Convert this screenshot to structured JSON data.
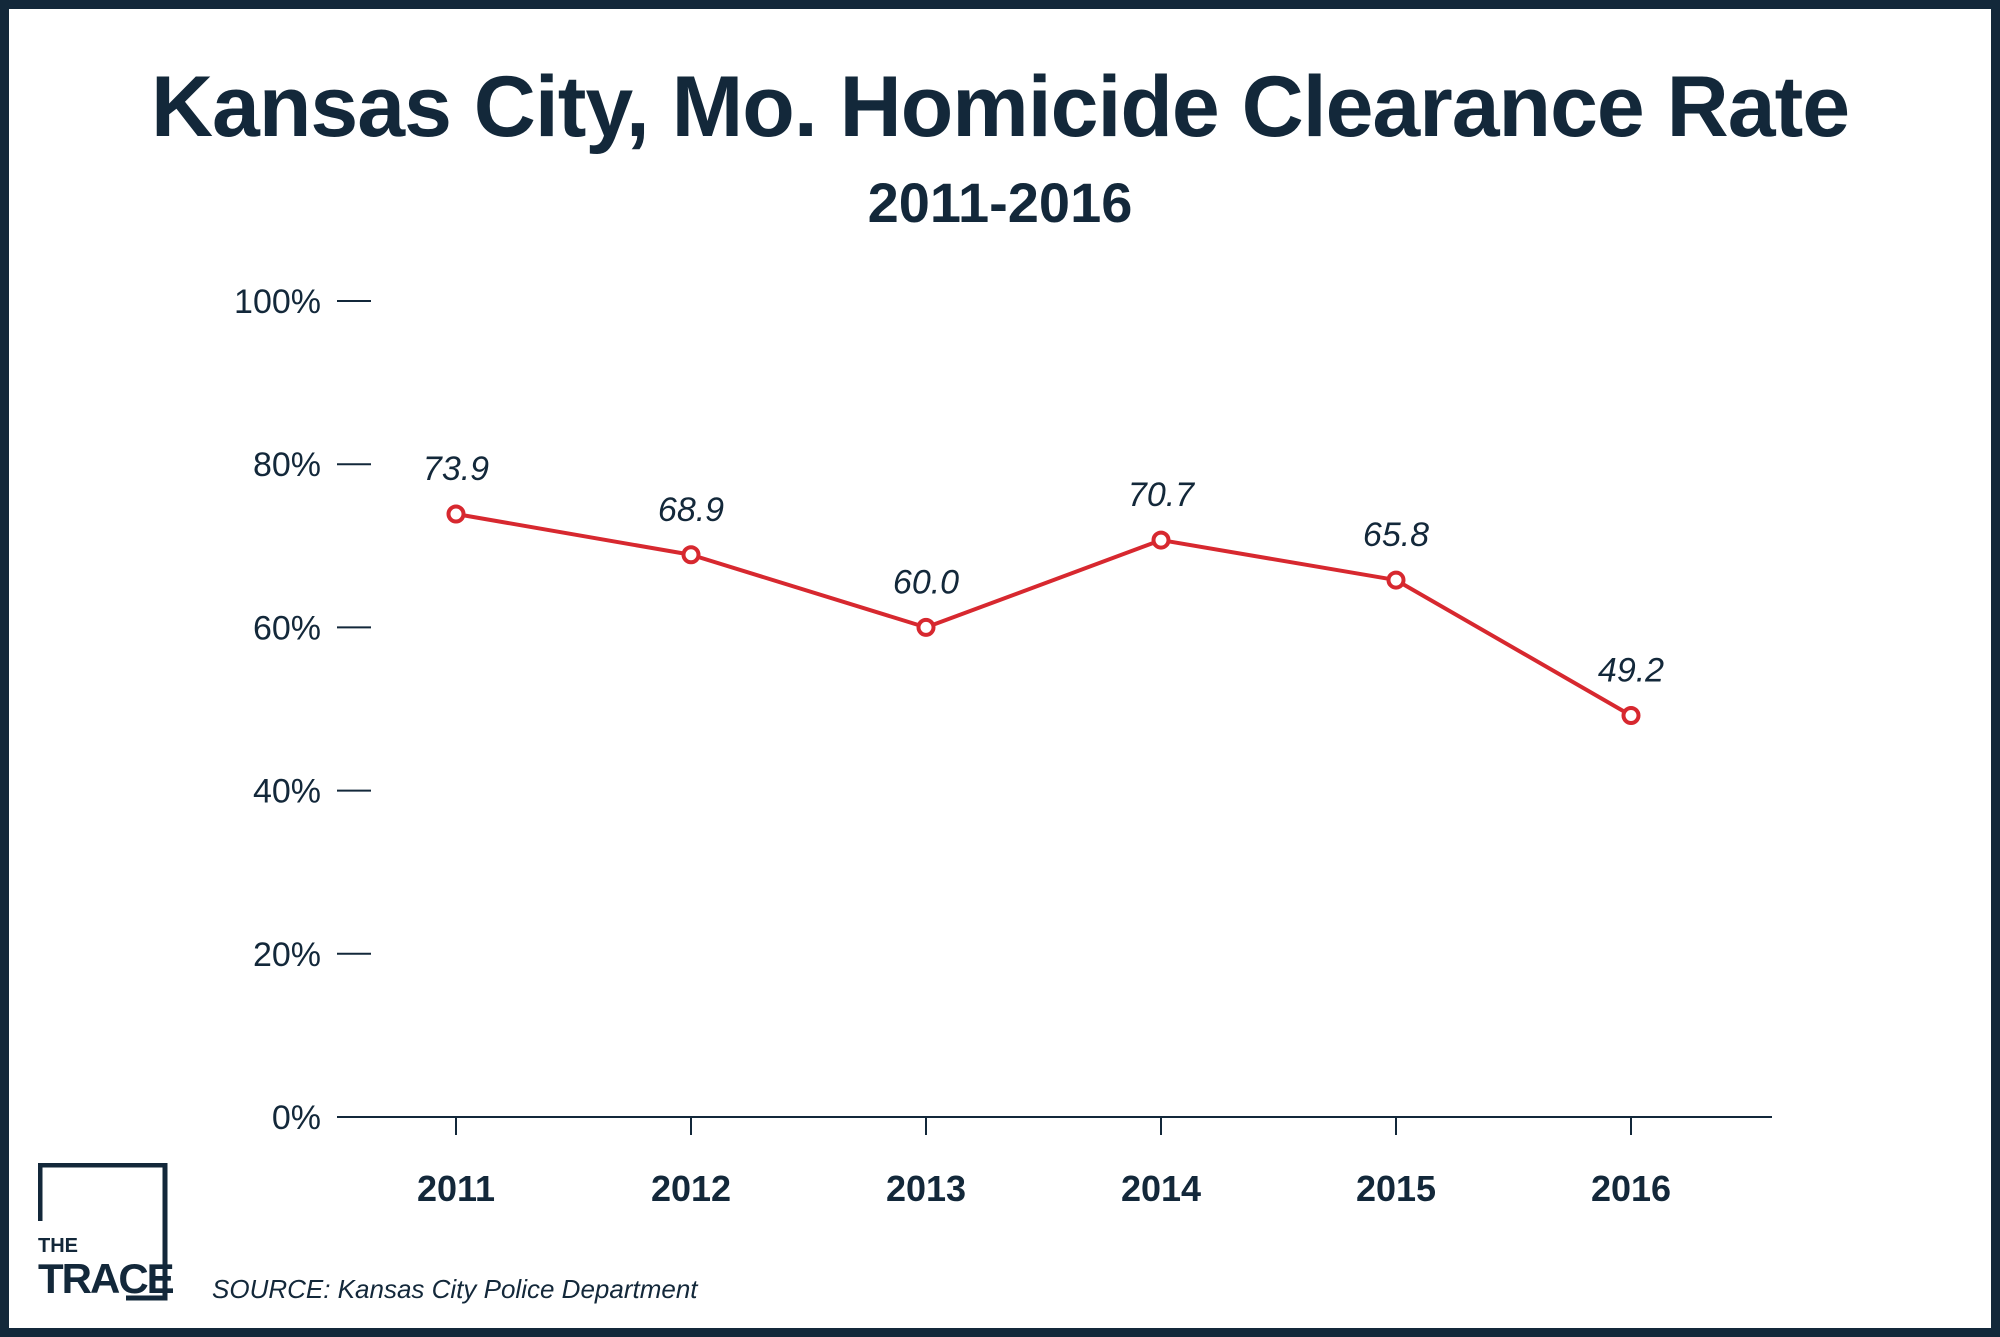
{
  "chart_data": {
    "type": "line",
    "title": "Kansas City, Mo. Homicide Clearance Rate",
    "subtitle": "2011-2016",
    "categories": [
      "2011",
      "2012",
      "2013",
      "2014",
      "2015",
      "2016"
    ],
    "series": [
      {
        "values": [
          73.9,
          68.9,
          60.0,
          70.7,
          65.8,
          49.2
        ]
      }
    ],
    "data_labels": [
      "73.9",
      "68.9",
      "60.0",
      "70.7",
      "65.8",
      "49.2"
    ],
    "y_ticks": [
      0,
      20,
      40,
      60,
      80,
      100
    ],
    "y_tick_labels": [
      "0%",
      "20%",
      "40%",
      "60%",
      "80%",
      "100%"
    ],
    "ylim": [
      0,
      100
    ],
    "grid": false,
    "line_color": "#d7282f",
    "text_color": "#13283a",
    "xlabel": "",
    "ylabel": ""
  },
  "logo": {
    "small": "THE",
    "big": "TRACE"
  },
  "source": "SOURCE: Kansas City Police Department"
}
